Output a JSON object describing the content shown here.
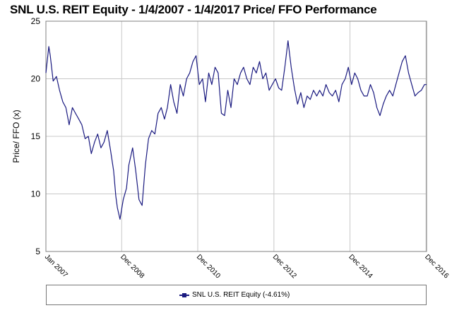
{
  "chart_data": {
    "type": "line",
    "title": "SNL U.S. REIT Equity - 1/4/2007 - 1/4/2017 Price/ FFO Performance",
    "ylabel": "Price/ FFO (x)",
    "xlabel": "",
    "ylim": [
      5,
      25
    ],
    "yticks": [
      "5",
      "10",
      "15",
      "20",
      "25"
    ],
    "xlim": [
      "2007-01-04",
      "2017-01-04"
    ],
    "xticks": [
      {
        "date": "2007-01-04",
        "label": "Jan 2007"
      },
      {
        "date": "2008-12-31",
        "label": "Dec 2008"
      },
      {
        "date": "2010-12-31",
        "label": "Dec 2010"
      },
      {
        "date": "2012-12-31",
        "label": "Dec 2012"
      },
      {
        "date": "2014-12-31",
        "label": "Dec 2014"
      },
      {
        "date": "2016-12-30",
        "label": "Dec 2016"
      }
    ],
    "grid": true,
    "legend_position": "bottom",
    "series": [
      {
        "name": "SNL U.S. REIT Equity (-4.61%)",
        "color": "#1a1a80",
        "x": [
          "2007-01-04",
          "2007-02-01",
          "2007-02-15",
          "2007-03-15",
          "2007-04-15",
          "2007-05-15",
          "2007-06-15",
          "2007-07-15",
          "2007-08-15",
          "2007-09-15",
          "2007-10-15",
          "2007-11-15",
          "2007-12-15",
          "2008-01-15",
          "2008-02-15",
          "2008-03-15",
          "2008-04-15",
          "2008-05-15",
          "2008-06-15",
          "2008-07-15",
          "2008-08-15",
          "2008-09-15",
          "2008-10-15",
          "2008-11-05",
          "2008-11-20",
          "2008-12-15",
          "2009-01-15",
          "2009-02-15",
          "2009-03-10",
          "2009-04-15",
          "2009-05-15",
          "2009-06-15",
          "2009-07-15",
          "2009-08-15",
          "2009-09-15",
          "2009-10-15",
          "2009-11-15",
          "2009-12-15",
          "2010-01-15",
          "2010-02-15",
          "2010-03-15",
          "2010-04-15",
          "2010-05-15",
          "2010-06-15",
          "2010-07-15",
          "2010-08-15",
          "2010-09-15",
          "2010-10-15",
          "2010-11-15",
          "2010-12-15",
          "2011-01-15",
          "2011-02-15",
          "2011-03-15",
          "2011-04-15",
          "2011-05-15",
          "2011-06-15",
          "2011-07-15",
          "2011-08-15",
          "2011-09-15",
          "2011-10-15",
          "2011-11-15",
          "2011-12-15",
          "2012-01-15",
          "2012-02-15",
          "2012-03-15",
          "2012-04-15",
          "2012-05-15",
          "2012-06-15",
          "2012-07-15",
          "2012-08-15",
          "2012-09-15",
          "2012-10-15",
          "2012-11-15",
          "2012-12-15",
          "2013-01-15",
          "2013-02-15",
          "2013-03-15",
          "2013-04-15",
          "2013-05-15",
          "2013-06-15",
          "2013-07-15",
          "2013-08-15",
          "2013-09-15",
          "2013-10-15",
          "2013-11-15",
          "2013-12-15",
          "2014-01-15",
          "2014-02-15",
          "2014-03-15",
          "2014-04-15",
          "2014-05-15",
          "2014-06-15",
          "2014-07-15",
          "2014-08-15",
          "2014-09-15",
          "2014-10-15",
          "2014-11-15",
          "2014-12-15",
          "2015-01-15",
          "2015-02-15",
          "2015-03-15",
          "2015-04-15",
          "2015-05-15",
          "2015-06-15",
          "2015-07-15",
          "2015-08-15",
          "2015-09-15",
          "2015-10-15",
          "2015-11-15",
          "2015-12-15",
          "2016-01-15",
          "2016-02-15",
          "2016-03-15",
          "2016-04-15",
          "2016-05-15",
          "2016-06-15",
          "2016-07-15",
          "2016-08-15",
          "2016-09-15",
          "2016-10-15",
          "2016-11-15",
          "2016-12-15",
          "2017-01-04"
        ],
        "values": [
          20.5,
          22.8,
          22.0,
          19.8,
          20.2,
          19.0,
          18.0,
          17.5,
          16.0,
          17.5,
          17.0,
          16.5,
          16.0,
          14.8,
          15.0,
          13.5,
          14.5,
          15.2,
          14.0,
          14.5,
          15.5,
          13.8,
          12.0,
          9.8,
          8.8,
          7.8,
          9.5,
          10.5,
          12.5,
          14.0,
          12.0,
          9.5,
          9.0,
          12.5,
          14.8,
          15.5,
          15.2,
          17.0,
          17.5,
          16.5,
          17.5,
          19.5,
          18.0,
          17.0,
          19.5,
          18.5,
          20.0,
          20.5,
          21.5,
          22.0,
          19.5,
          20.0,
          18.0,
          20.5,
          19.5,
          21.0,
          20.5,
          17.0,
          16.8,
          19.0,
          17.5,
          20.0,
          19.5,
          20.5,
          21.0,
          20.0,
          19.5,
          21.0,
          20.5,
          21.5,
          20.0,
          20.5,
          19.0,
          19.5,
          20.0,
          19.2,
          19.0,
          21.0,
          23.3,
          21.0,
          19.2,
          17.8,
          18.8,
          17.5,
          18.5,
          18.2,
          19.0,
          18.5,
          19.0,
          18.5,
          19.5,
          18.8,
          18.5,
          19.0,
          18.0,
          19.5,
          20.0,
          21.0,
          19.5,
          20.5,
          20.0,
          19.0,
          18.5,
          18.5,
          19.5,
          18.8,
          17.5,
          16.8,
          17.8,
          18.5,
          19.0,
          18.5,
          19.5,
          20.5,
          21.5,
          22.0,
          20.5,
          19.5,
          18.5,
          18.8,
          19.0,
          19.5,
          19.5
        ]
      }
    ]
  }
}
